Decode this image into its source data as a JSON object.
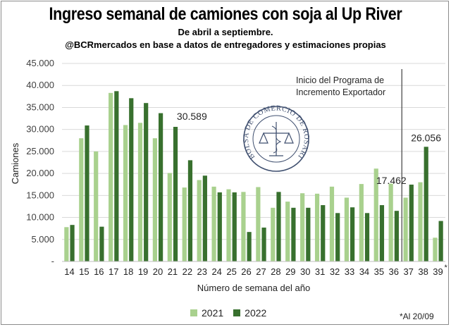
{
  "header": {
    "title": "Ingreso semanal de camiones con soja al Up River",
    "subtitle": "De abril a septiembre.",
    "source": "@BCRmercados en base a datos de entregadores y estimaciones propias"
  },
  "footnote": "*Al 20/09",
  "logo_text": "BOLSA DE COMERCIO DE ROSARIO",
  "colors": {
    "series_2021": "#a9d18e",
    "series_2022": "#38702e",
    "grid": "#d9d9d9",
    "axis_text": "#404040"
  },
  "chart_data": {
    "type": "bar",
    "title": "Ingreso semanal de camiones con soja al Up River",
    "xlabel": "Número de semana del año",
    "ylabel": "Camiones",
    "ylim": [
      0,
      45000
    ],
    "yticks": [
      "-",
      "5.000",
      "10.000",
      "15.000",
      "20.000",
      "25.000",
      "30.000",
      "35.000",
      "40.000",
      "45.000"
    ],
    "grid": true,
    "legend_position": "bottom",
    "categories": [
      "14",
      "15",
      "16",
      "17",
      "18",
      "19",
      "20",
      "21",
      "22",
      "23",
      "24",
      "25",
      "26",
      "27",
      "28",
      "29",
      "30",
      "31",
      "32",
      "33",
      "34",
      "35",
      "36",
      "37",
      "38",
      "39*"
    ],
    "series": [
      {
        "name": "2021",
        "values": [
          7800,
          28000,
          25000,
          38300,
          31000,
          31500,
          28000,
          20100,
          16800,
          18500,
          17000,
          16400,
          15800,
          16900,
          12200,
          13600,
          15500,
          15400,
          17000,
          14500,
          17600,
          21100,
          17700,
          14500,
          18000,
          5400
        ]
      },
      {
        "name": "2022",
        "values": [
          8300,
          30900,
          7900,
          38700,
          37100,
          36000,
          33700,
          30589,
          23000,
          19500,
          15700,
          15700,
          6700,
          7700,
          15800,
          12200,
          12200,
          12800,
          11000,
          12300,
          11000,
          12800,
          11500,
          17462,
          26056,
          9200
        ]
      }
    ],
    "data_labels": [
      {
        "series": "2022",
        "category": "21",
        "text": "30.589"
      },
      {
        "series": "2022",
        "category": "37",
        "text": "17.462"
      },
      {
        "series": "2022",
        "category": "38",
        "text": "26.056"
      }
    ],
    "annotation": {
      "text_line1": "Inicio del Programa de",
      "text_line2": "Incremento Exportador",
      "category": "37"
    }
  }
}
